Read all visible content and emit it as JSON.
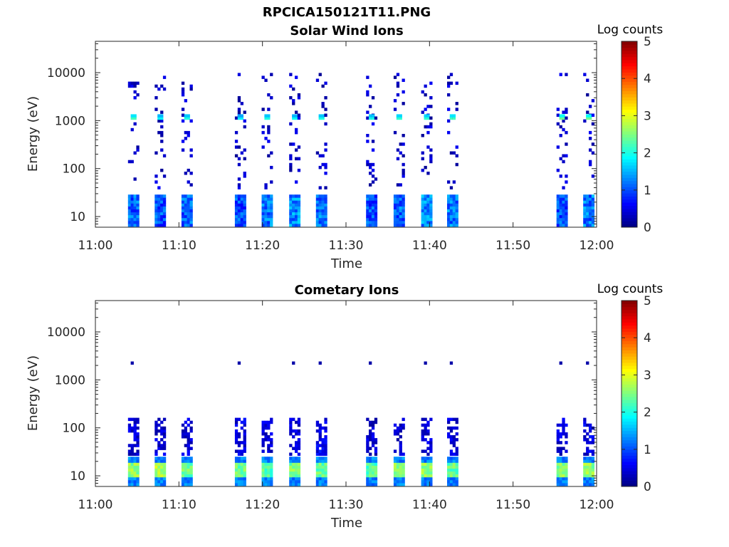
{
  "title": "RPCICA150121T11.PNG",
  "chart_data": [
    {
      "type": "heatmap",
      "title": "Solar Wind Ions",
      "xlabel": "Time",
      "ylabel": "Energy (eV)",
      "x_ticks": [
        "11:00",
        "11:10",
        "11:20",
        "11:30",
        "11:40",
        "11:50",
        "12:00"
      ],
      "x_range_minutes": [
        0,
        60
      ],
      "y_ticks": [
        "10",
        "100",
        "1000",
        "10000"
      ],
      "y_scale": "log",
      "y_range": [
        6,
        45000
      ],
      "colorbar": {
        "label": "Log counts",
        "range": [
          0,
          5
        ],
        "ticks": [
          "0",
          "1",
          "2",
          "3",
          "4",
          "5"
        ],
        "colormap": "jet"
      },
      "bursts": [
        {
          "t": 4.4,
          "low": 1.1,
          "mid": 2.2
        },
        {
          "t": 7.6,
          "low": 1.0,
          "mid": 1.9
        },
        {
          "t": 10.8,
          "low": 1.1,
          "mid": 2.0
        },
        {
          "t": 17.2,
          "low": 1.0,
          "mid": 1.8
        },
        {
          "t": 20.4,
          "low": 1.2,
          "mid": 2.0
        },
        {
          "t": 23.7,
          "low": 1.3,
          "mid": 1.9
        },
        {
          "t": 26.9,
          "low": 1.2,
          "mid": 2.0
        },
        {
          "t": 32.9,
          "low": 1.0,
          "mid": 2.0
        },
        {
          "t": 36.2,
          "low": 1.1,
          "mid": 2.1
        },
        {
          "t": 39.5,
          "low": 1.3,
          "mid": 2.1
        },
        {
          "t": 42.6,
          "low": 1.2,
          "mid": 2.2
        },
        {
          "t": 55.7,
          "low": 1.0,
          "mid": 2.4
        },
        {
          "t": 58.9,
          "low": 1.2,
          "mid": 2.4
        }
      ]
    },
    {
      "type": "heatmap",
      "title": "Cometary Ions",
      "xlabel": "Time",
      "ylabel": "Energy (eV)",
      "x_ticks": [
        "11:00",
        "11:10",
        "11:20",
        "11:30",
        "11:40",
        "11:50",
        "12:00"
      ],
      "x_range_minutes": [
        0,
        60
      ],
      "y_ticks": [
        "10",
        "100",
        "1000",
        "10000"
      ],
      "y_scale": "log",
      "y_range": [
        6,
        45000
      ],
      "colorbar": {
        "label": "Log counts",
        "range": [
          0,
          5
        ],
        "ticks": [
          "0",
          "1",
          "2",
          "3",
          "4",
          "5"
        ],
        "colormap": "jet"
      },
      "bursts": [
        {
          "t": 4.4,
          "low": 2.6,
          "mid": 1.0
        },
        {
          "t": 7.6,
          "low": 2.7,
          "mid": 1.0
        },
        {
          "t": 10.8,
          "low": 2.4,
          "mid": 1.0
        },
        {
          "t": 17.2,
          "low": 2.4,
          "mid": 1.1
        },
        {
          "t": 20.4,
          "low": 2.3,
          "mid": 1.0
        },
        {
          "t": 23.7,
          "low": 2.5,
          "mid": 1.0
        },
        {
          "t": 26.9,
          "low": 2.4,
          "mid": 1.2
        },
        {
          "t": 32.9,
          "low": 2.3,
          "mid": 1.0
        },
        {
          "t": 36.2,
          "low": 2.6,
          "mid": 1.0
        },
        {
          "t": 39.5,
          "low": 2.6,
          "mid": 1.0
        },
        {
          "t": 42.6,
          "low": 2.4,
          "mid": 1.0
        },
        {
          "t": 55.7,
          "low": 2.6,
          "mid": 1.1
        },
        {
          "t": 58.9,
          "low": 2.6,
          "mid": 1.2
        }
      ]
    }
  ]
}
